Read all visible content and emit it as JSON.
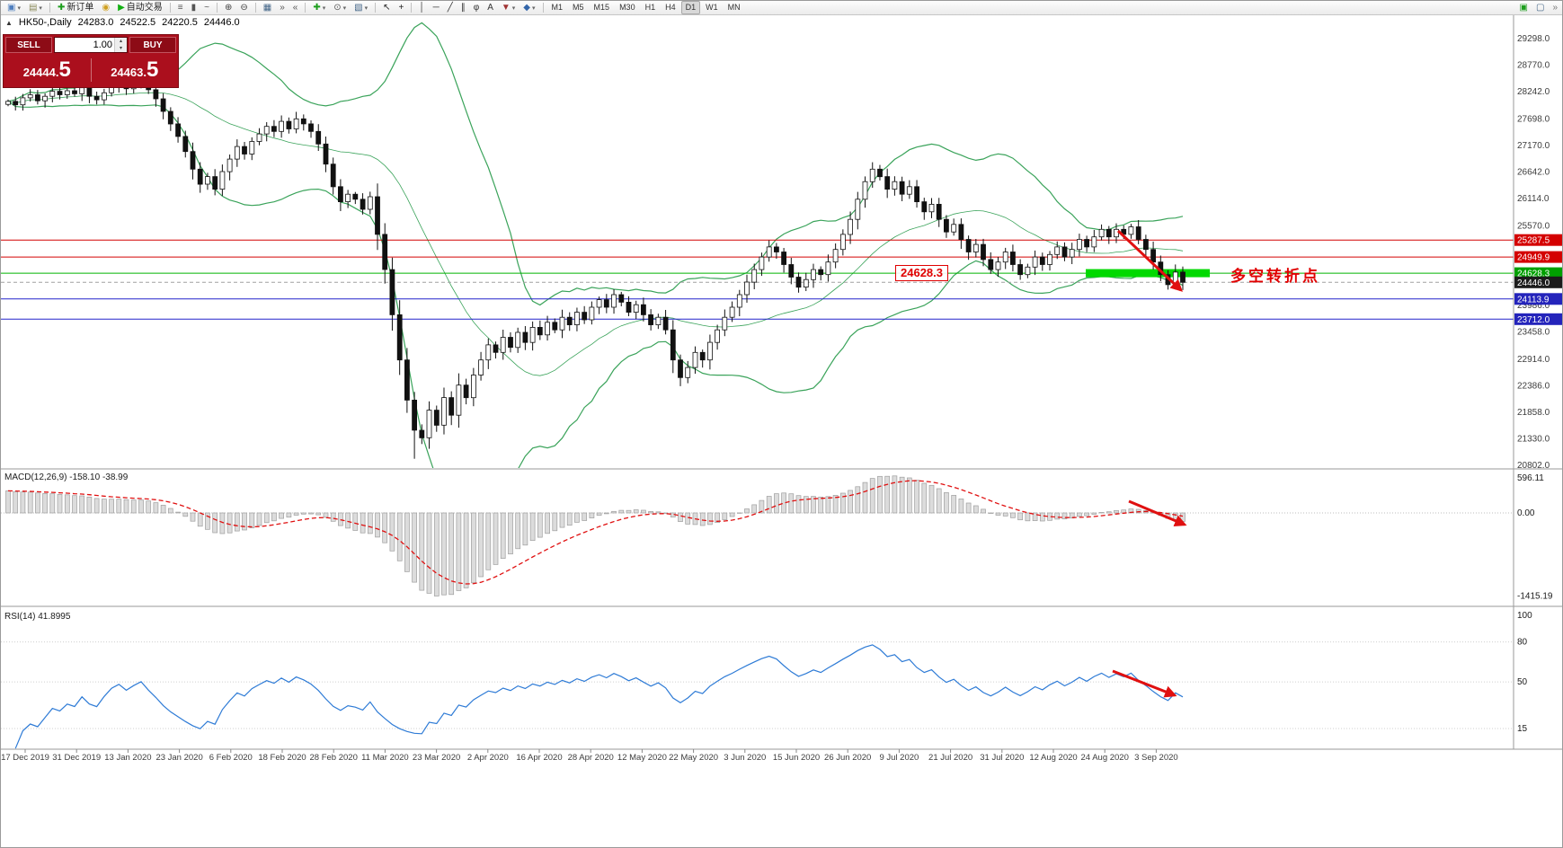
{
  "icons": {
    "info_marker": "▲",
    "volume_up": "▴",
    "volume_down": "▾",
    "caret": "▾"
  },
  "toolbar": {
    "items": [
      {
        "name": "new-chart-icon",
        "glyph": "▣",
        "color": "#4f7fbf",
        "caret": true
      },
      {
        "name": "profiles-icon",
        "glyph": "▤",
        "color": "#8a8a5a",
        "caret": true
      },
      {
        "type": "sep"
      },
      {
        "name": "new-order-button",
        "glyph": "✚",
        "color": "#1d9e1d",
        "label": "新订单"
      },
      {
        "name": "symbols-icon",
        "glyph": "◉",
        "color": "#d0a020"
      },
      {
        "name": "auto-trading-button",
        "glyph": "▶",
        "color": "#13b013",
        "label": "自动交易"
      },
      {
        "type": "sep"
      },
      {
        "name": "bar-chart-icon",
        "glyph": "≡",
        "color": "#555555"
      },
      {
        "name": "candle-chart-icon",
        "glyph": "▮",
        "color": "#555555"
      },
      {
        "name": "line-chart-icon",
        "glyph": "~",
        "color": "#555555"
      },
      {
        "type": "sep"
      },
      {
        "name": "zoom-in-icon",
        "glyph": "⊕",
        "color": "#444444"
      },
      {
        "name": "zoom-out-icon",
        "glyph": "⊖",
        "color": "#444444"
      },
      {
        "type": "sep"
      },
      {
        "name": "tile-windows-icon",
        "glyph": "▦",
        "color": "#446688"
      },
      {
        "name": "auto-scroll-icon",
        "glyph": "»",
        "color": "#555555"
      },
      {
        "name": "chart-shift-icon",
        "glyph": "«",
        "color": "#555555"
      },
      {
        "type": "sep"
      },
      {
        "name": "indicators-icon",
        "glyph": "✚",
        "color": "#1d9e1d",
        "caret": true
      },
      {
        "name": "periods-icon",
        "glyph": "⊙",
        "color": "#555555",
        "caret": true
      },
      {
        "name": "templates-icon",
        "glyph": "▧",
        "color": "#446688",
        "caret": true
      },
      {
        "type": "sep"
      },
      {
        "name": "cursor-icon",
        "glyph": "↖",
        "color": "#222222"
      },
      {
        "name": "crosshair-icon",
        "glyph": "+",
        "color": "#222222"
      },
      {
        "type": "sep"
      },
      {
        "name": "vertical-line-icon",
        "glyph": "│",
        "color": "#333333"
      },
      {
        "name": "horizontal-line-icon",
        "glyph": "─",
        "color": "#333333"
      },
      {
        "name": "trendline-icon",
        "glyph": "╱",
        "color": "#333333"
      },
      {
        "name": "channel-icon",
        "glyph": "∥",
        "color": "#333333"
      },
      {
        "name": "fibonacci-icon",
        "glyph": "φ",
        "color": "#333333"
      },
      {
        "name": "text-icon",
        "glyph": "A",
        "color": "#333333"
      },
      {
        "name": "arrows-icon",
        "glyph": "▼",
        "color": "#a03333",
        "caret": true
      },
      {
        "name": "shapes-icon",
        "glyph": "◆",
        "color": "#3366aa",
        "caret": true
      },
      {
        "type": "sep"
      }
    ],
    "timeframes": [
      "M1",
      "M5",
      "M15",
      "M30",
      "H1",
      "H4",
      "D1",
      "W1",
      "MN"
    ],
    "active_timeframe": "D1",
    "right_items": [
      {
        "name": "new-window-icon",
        "glyph": "▣",
        "color": "#1d9e1d"
      },
      {
        "name": "window-list-icon",
        "glyph": "▢",
        "color": "#446688"
      },
      {
        "name": "toolbar-overflow-icon",
        "glyph": "»",
        "color": "#777777"
      }
    ]
  },
  "chart_info": {
    "symbol": "HK50-,Daily",
    "open": "24283.0",
    "high": "24522.5",
    "low": "24220.5",
    "close": "24446.0"
  },
  "trade_panel": {
    "sell_label": "SELL",
    "buy_label": "BUY",
    "volume": "1.00",
    "sell_price_main": "24444.",
    "sell_price_pip": "5",
    "buy_price_main": "24463.",
    "buy_price_pip": "5"
  },
  "annotations": {
    "level_callout": "24628.3",
    "turning_point": "多空转折点"
  },
  "price_axis": {
    "labels": [
      "29298.0",
      "28770.0",
      "28242.0",
      "27698.0",
      "27170.0",
      "26642.0",
      "26114.0",
      "25570.0",
      "23986.0",
      "23458.0",
      "22914.0",
      "22386.0",
      "21858.0",
      "21330.0",
      "20802.0"
    ]
  },
  "levels": [
    {
      "label": "25287.5",
      "value": 25287.5,
      "line": "#d40000",
      "badge": "#d40000",
      "dash": false
    },
    {
      "label": "24949.9",
      "value": 24949.9,
      "line": "#d40000",
      "badge": "#d40000",
      "dash": false
    },
    {
      "label": "24628.3",
      "value": 24628.3,
      "line": "#00b400",
      "badge": "#00a000",
      "dash": false
    },
    {
      "label": "24446.0",
      "value": 24446.0,
      "line": "#a0a0a0",
      "badge": "#1c1c1c",
      "dash": true
    },
    {
      "label": "24113.9",
      "value": 24113.9,
      "line": "#2424cc",
      "badge": "#2424bb",
      "dash": false
    },
    {
      "label": "23712.0",
      "value": 23712.0,
      "line": "#2424cc",
      "badge": "#2424bb",
      "dash": false
    }
  ],
  "macd_pane": {
    "label": "MACD(12,26,9) -158.10 -38.99",
    "scale": [
      "596.11",
      "0.00",
      "-1415.19"
    ]
  },
  "rsi_pane": {
    "label": "RSI(14) 41.8995",
    "scale": [
      "100",
      "80",
      "50",
      "15"
    ]
  },
  "date_axis": {
    "labels": [
      "17 Dec 2019",
      "31 Dec 2019",
      "13 Jan 2020",
      "23 Jan 2020",
      "6 Feb 2020",
      "18 Feb 2020",
      "28 Feb 2020",
      "11 Mar 2020",
      "23 Mar 2020",
      "2 Apr 2020",
      "16 Apr 2020",
      "28 Apr 2020",
      "12 May 2020",
      "22 May 2020",
      "3 Jun 2020",
      "15 Jun 2020",
      "26 Jun 2020",
      "9 Jul 2020",
      "21 Jul 2020",
      "31 Jul 2020",
      "12 Aug 2020",
      "24 Aug 2020",
      "3 Sep 2020"
    ]
  },
  "chart_data": {
    "type": "candlestick",
    "symbol": "HK50-",
    "timeframe": "Daily",
    "title": "HK50- Daily with Bollinger(20,2), MACD(12,26,9), RSI(14)",
    "ohlc_last_bar": {
      "open": 24283.0,
      "high": 24522.5,
      "low": 24220.5,
      "close": 24446.0
    },
    "open_rule": "previous_close",
    "ylim": [
      20766,
      29763
    ],
    "closes": [
      28050,
      27980,
      28120,
      28180,
      28060,
      28150,
      28250,
      28180,
      28260,
      28200,
      28320,
      28150,
      28080,
      28220,
      28350,
      28420,
      28300,
      28380,
      28450,
      28280,
      28100,
      27850,
      27600,
      27350,
      27050,
      26700,
      26400,
      26550,
      26300,
      26650,
      26900,
      27150,
      27000,
      27250,
      27400,
      27550,
      27450,
      27650,
      27500,
      27700,
      27600,
      27450,
      27200,
      26800,
      26350,
      26050,
      26200,
      26100,
      25900,
      26150,
      25400,
      24700,
      23800,
      22900,
      22100,
      21500,
      21350,
      21900,
      21600,
      22150,
      21800,
      22400,
      22150,
      22600,
      22900,
      23200,
      23050,
      23350,
      23150,
      23450,
      23250,
      23550,
      23400,
      23650,
      23500,
      23750,
      23600,
      23850,
      23700,
      23950,
      24100,
      23950,
      24200,
      24050,
      23850,
      24000,
      23800,
      23600,
      23750,
      23500,
      22900,
      22550,
      22750,
      23050,
      22900,
      23250,
      23500,
      23750,
      23950,
      24200,
      24450,
      24700,
      24950,
      25150,
      25050,
      24800,
      24550,
      24350,
      24500,
      24700,
      24600,
      24850,
      25100,
      25400,
      25700,
      26100,
      26450,
      26700,
      26550,
      26300,
      26450,
      26200,
      26350,
      26050,
      25850,
      26000,
      25700,
      25450,
      25600,
      25300,
      25050,
      25200,
      24900,
      24700,
      24850,
      25050,
      24800,
      24600,
      24750,
      24950,
      24800,
      25000,
      25150,
      24950,
      25100,
      25300,
      25150,
      25350,
      25500,
      25350,
      25500,
      25400,
      25550,
      25300,
      25100,
      24850,
      24600,
      24400,
      24650,
      24446
    ],
    "overlays": [
      "Bollinger(20,2)"
    ],
    "indicators": [
      {
        "name": "MACD(12,26,9)",
        "last_values": [
          -158.1,
          -38.99
        ],
        "scale_min": -1415.19,
        "scale_max": 596.11
      },
      {
        "name": "RSI(14)",
        "last_value": 41.8995,
        "scale_labels": [
          100,
          80,
          50,
          15
        ]
      }
    ],
    "horizontal_levels": [
      25287.5,
      24949.9,
      24628.3,
      24446.0,
      24113.9,
      23712.0
    ]
  }
}
